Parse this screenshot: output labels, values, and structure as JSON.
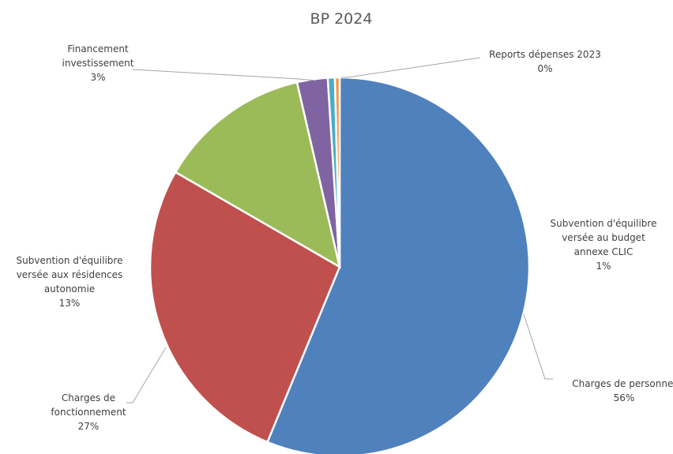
{
  "chart_data": {
    "type": "pie",
    "title": "BP 2024",
    "slices": [
      {
        "label": "Charges de personnel",
        "value": 56,
        "value_label": "56%",
        "color": "#4f81bd"
      },
      {
        "label": "Charges de fonctionnement",
        "value": 27,
        "value_label": "27%",
        "color": "#c0504d"
      },
      {
        "label": "Subvention d'équilibre versée aux résidences autonomie",
        "value": 13,
        "value_label": "13%",
        "color": "#9bbb59"
      },
      {
        "label": "Financement investissement",
        "value": 2.6,
        "value_label": "3%",
        "color": "#8064a2"
      },
      {
        "label": "Subvention d'équilibre versée au budget annexe CLIC",
        "value": 0.6,
        "value_label": "1%",
        "color": "#4bacc6"
      },
      {
        "label": "Reports dépenses 2023",
        "value": 0.4,
        "value_label": "0%",
        "color": "#f79646"
      }
    ],
    "legend": "none"
  }
}
